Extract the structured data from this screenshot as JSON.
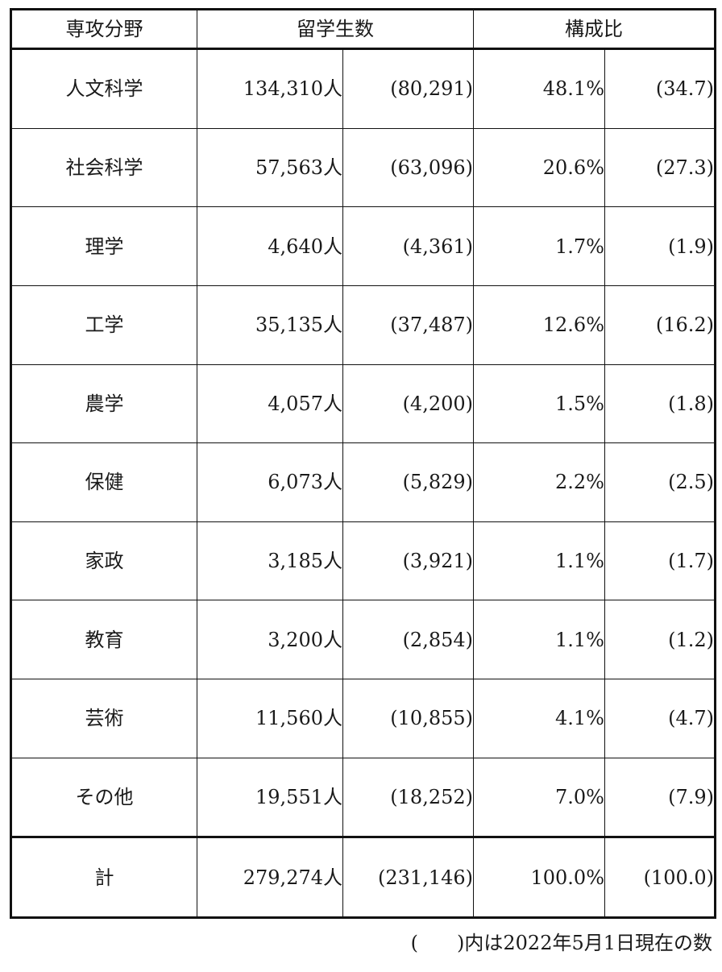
{
  "headers": {
    "field": "専攻分野",
    "students": "留学生数",
    "ratio": "構成比"
  },
  "rows": [
    {
      "field": "人文科学",
      "count": "134,310人",
      "prev_count": "(80,291)",
      "ratio": "48.1%",
      "prev_ratio": "(34.7)"
    },
    {
      "field": "社会科学",
      "count": "57,563人",
      "prev_count": "(63,096)",
      "ratio": "20.6%",
      "prev_ratio": "(27.3)"
    },
    {
      "field": "理学",
      "count": "4,640人",
      "prev_count": "(4,361)",
      "ratio": "1.7%",
      "prev_ratio": "(1.9)"
    },
    {
      "field": "工学",
      "count": "35,135人",
      "prev_count": "(37,487)",
      "ratio": "12.6%",
      "prev_ratio": "(16.2)"
    },
    {
      "field": "農学",
      "count": "4,057人",
      "prev_count": "(4,200)",
      "ratio": "1.5%",
      "prev_ratio": "(1.8)"
    },
    {
      "field": "保健",
      "count": "6,073人",
      "prev_count": "(5,829)",
      "ratio": "2.2%",
      "prev_ratio": "(2.5)"
    },
    {
      "field": "家政",
      "count": "3,185人",
      "prev_count": "(3,921)",
      "ratio": "1.1%",
      "prev_ratio": "(1.7)"
    },
    {
      "field": "教育",
      "count": "3,200人",
      "prev_count": "(2,854)",
      "ratio": "1.1%",
      "prev_ratio": "(1.2)"
    },
    {
      "field": "芸術",
      "count": "11,560人",
      "prev_count": "(10,855)",
      "ratio": "4.1%",
      "prev_ratio": "(4.7)"
    },
    {
      "field": "その他",
      "count": "19,551人",
      "prev_count": "(18,252)",
      "ratio": "7.0%",
      "prev_ratio": "(7.9)"
    }
  ],
  "total": {
    "field": "計",
    "count": "279,274人",
    "prev_count": "(231,146)",
    "ratio": "100.0%",
    "prev_ratio": "(100.0)"
  },
  "footnote": "(　　)内は2022年5月1日現在の数"
}
